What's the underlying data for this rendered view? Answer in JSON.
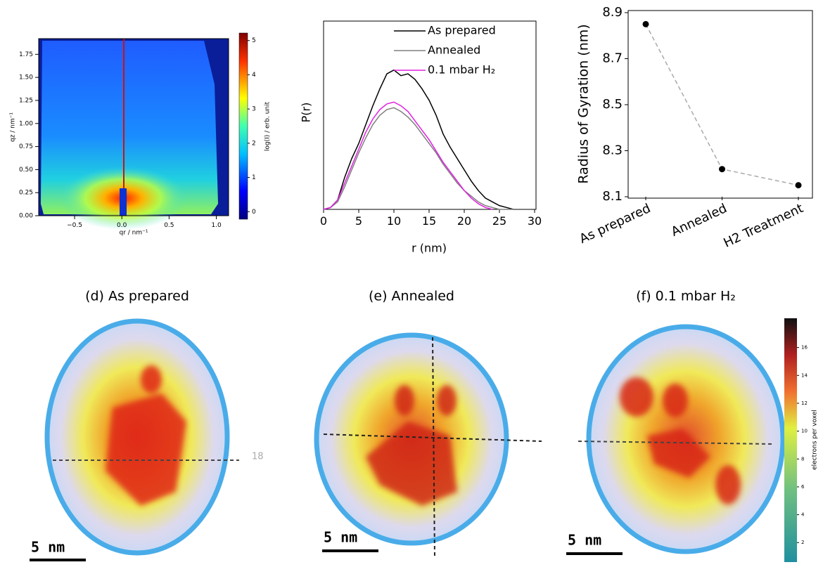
{
  "chart_data": [
    {
      "type": "image",
      "xlabel": "qr / nm⁻¹",
      "ylabel": "qz / nm⁻¹",
      "xlim": [
        -0.88,
        1.13
      ],
      "ylim": [
        0,
        1.92
      ],
      "xticks": [
        {
          "value": -0.5,
          "label": "−0.5"
        },
        {
          "value": 0,
          "label": "0.0"
        },
        0.5,
        {
          "value": 1,
          "label": "1.0"
        }
      ],
      "yticks": [
        {
          "value": 0,
          "label": "0.00"
        },
        0.25,
        {
          "value": 0.5,
          "label": "0.50"
        },
        0.75,
        {
          "value": 1,
          "label": "1.00"
        },
        1.25,
        {
          "value": 1.5,
          "label": "1.50"
        },
        1.75
      ],
      "colorbar": {
        "label": "log(I) / erb. unit",
        "lim": [
          -0.22,
          5.22
        ],
        "ticks": [
          0,
          1,
          2,
          3,
          4,
          5
        ]
      }
    },
    {
      "type": "line",
      "xlabel": "r (nm)",
      "ylabel": "P(r)",
      "xlim": [
        0,
        30
      ],
      "ylim": [
        0,
        1
      ],
      "xticks": [
        0,
        5,
        10,
        15,
        20,
        25,
        30
      ],
      "x": [
        0,
        1,
        2,
        3,
        4,
        5,
        6,
        7,
        8,
        9,
        10,
        11,
        12,
        13,
        14,
        15,
        16,
        17,
        18,
        19,
        20,
        21,
        22,
        23,
        24,
        25,
        26,
        27
      ],
      "series": [
        {
          "name": "As prepared",
          "color": "#000000",
          "values": [
            0,
            0.01,
            0.05,
            0.17,
            0.27,
            0.35,
            0.45,
            0.55,
            0.64,
            0.72,
            0.74,
            0.71,
            0.72,
            0.69,
            0.64,
            0.58,
            0.5,
            0.4,
            0.33,
            0.27,
            0.21,
            0.15,
            0.1,
            0.06,
            0.04,
            0.02,
            0.01,
            0
          ]
        },
        {
          "name": "Annealed",
          "color": "#808080",
          "values": [
            0,
            0.01,
            0.04,
            0.12,
            0.21,
            0.3,
            0.38,
            0.45,
            0.5,
            0.53,
            0.54,
            0.52,
            0.49,
            0.45,
            0.4,
            0.35,
            0.3,
            0.24,
            0.19,
            0.14,
            0.1,
            0.07,
            0.04,
            0.02,
            0.01,
            0,
            0,
            0
          ]
        },
        {
          "name": "0.1 mbar H₂",
          "color": "#e020e0",
          "values": [
            0,
            0.01,
            0.05,
            0.14,
            0.23,
            0.32,
            0.41,
            0.48,
            0.53,
            0.56,
            0.57,
            0.55,
            0.52,
            0.47,
            0.42,
            0.37,
            0.31,
            0.25,
            0.2,
            0.15,
            0.1,
            0.06,
            0.03,
            0.01,
            0,
            null,
            null,
            null
          ]
        }
      ]
    },
    {
      "type": "line",
      "ylabel": "Radius of Gyration (nm)",
      "color": "#000000",
      "categories": [
        "As prepared",
        "Annealed",
        "H2 Treatment"
      ],
      "values": [
        8.85,
        8.22,
        8.15
      ],
      "ylim": [
        8.1,
        8.9
      ],
      "yticks": [
        8.1,
        8.3,
        8.5,
        8.7,
        8.9
      ]
    },
    {
      "type": "volume",
      "panels": [
        {
          "title": "(d) As prepared",
          "scale_bar_label": "5 nm"
        },
        {
          "title": "(e) Annealed",
          "scale_bar_label": "5 nm"
        },
        {
          "title": "(f) 0.1 mbar H₂",
          "scale_bar_label": "5 nm"
        }
      ],
      "annotation": "18",
      "colorbar": {
        "label": "electrons per voxel",
        "lim": [
          0.6,
          18.1
        ],
        "ticks": [
          2,
          4,
          6,
          8,
          10,
          12,
          14,
          16
        ]
      }
    }
  ]
}
